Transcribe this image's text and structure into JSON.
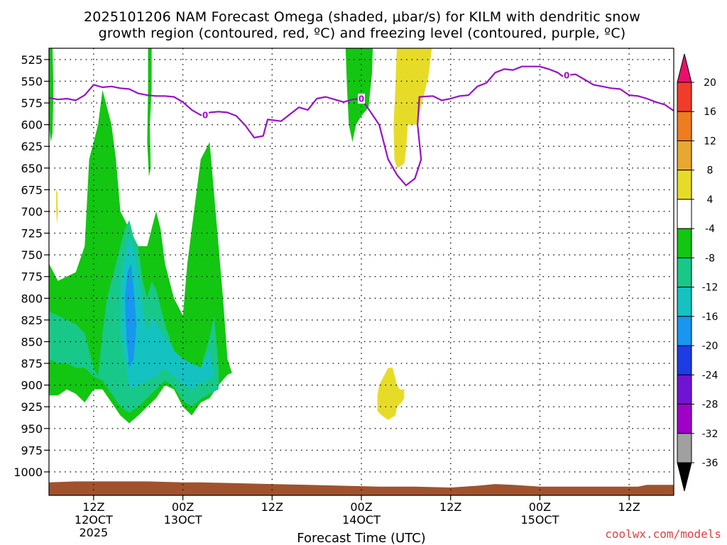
{
  "chart_data": {
    "type": "contour",
    "title_line1": "2025101206 NAM Forecast Omega (shaded, μbar/s) for KILM with dendritic snow",
    "title_line2": "growth region (contoured, red, ºC) and freezing level (contoured, purple, ºC)",
    "xlabel": "Forecast Time (UTC)",
    "credit": "coolwx.com/models",
    "y_ticks": [
      525,
      550,
      575,
      600,
      625,
      650,
      675,
      700,
      725,
      750,
      775,
      800,
      825,
      850,
      875,
      900,
      925,
      950,
      975,
      1000
    ],
    "y_range": [
      512,
      1027
    ],
    "x_range_hours": [
      7,
      77
    ],
    "x_ticks": [
      {
        "hour": 12,
        "lines": [
          "12Z",
          "12OCT",
          "2025"
        ]
      },
      {
        "hour": 22,
        "lines": [
          "00Z",
          "13OCT"
        ]
      },
      {
        "hour": 32,
        "lines": [
          "12Z"
        ]
      },
      {
        "hour": 42,
        "lines": [
          "00Z",
          "14OCT"
        ]
      },
      {
        "hour": 52,
        "lines": [
          "12Z"
        ]
      },
      {
        "hour": 62,
        "lines": [
          "00Z",
          "15OCT"
        ]
      },
      {
        "hour": 72,
        "lines": [
          "12Z"
        ]
      }
    ],
    "colorbar": {
      "labels": [
        "20",
        "16",
        "12",
        "8",
        "4",
        "-4",
        "-8",
        "-12",
        "-16",
        "-20",
        "-24",
        "-28",
        "-32",
        "-36"
      ],
      "colors": [
        "#e8106c",
        "#f03c28",
        "#f07c20",
        "#e6a830",
        "#e6dc28",
        "#ffffff",
        "#12c612",
        "#18c888",
        "#14c2c2",
        "#1896f0",
        "#1c3ce6",
        "#7014d2",
        "#a000c8",
        "#a0a0a0",
        "#000000"
      ]
    },
    "freezing_level": {
      "label": "0",
      "color": "#9a10c8",
      "points": [
        [
          7,
          569
        ],
        [
          8,
          571
        ],
        [
          9,
          570
        ],
        [
          10,
          572
        ],
        [
          11,
          566
        ],
        [
          12,
          554
        ],
        [
          13,
          557
        ],
        [
          14,
          556
        ],
        [
          15,
          558
        ],
        [
          16,
          559
        ],
        [
          17,
          564
        ],
        [
          18,
          566
        ],
        [
          19,
          567
        ],
        [
          20,
          567
        ],
        [
          21,
          568
        ],
        [
          22,
          574
        ],
        [
          23,
          583
        ],
        [
          24,
          589
        ],
        [
          25,
          586
        ],
        [
          26,
          585
        ],
        [
          27,
          586
        ],
        [
          28,
          590
        ],
        [
          29,
          601
        ],
        [
          30,
          615
        ],
        [
          31,
          613
        ],
        [
          31.5,
          594
        ],
        [
          33,
          596
        ],
        [
          34,
          588
        ],
        [
          35,
          580
        ],
        [
          36,
          583
        ],
        [
          37,
          570
        ],
        [
          38,
          568
        ],
        [
          39,
          571
        ],
        [
          40,
          574
        ],
        [
          41,
          571
        ],
        [
          42,
          570
        ],
        [
          43,
          585
        ],
        [
          44,
          600
        ],
        [
          45,
          640
        ],
        [
          46,
          658
        ],
        [
          47,
          670
        ],
        [
          48,
          662
        ],
        [
          48.7,
          640
        ],
        [
          48.3,
          600
        ],
        [
          48.5,
          568
        ],
        [
          50,
          567
        ],
        [
          51,
          572
        ],
        [
          52,
          570
        ],
        [
          53,
          567
        ],
        [
          54,
          566
        ],
        [
          55,
          556
        ],
        [
          56,
          552
        ],
        [
          57,
          540
        ],
        [
          58,
          536
        ],
        [
          59,
          537
        ],
        [
          60,
          533
        ],
        [
          62,
          533
        ],
        [
          63,
          536
        ],
        [
          64,
          540
        ],
        [
          64.5,
          544
        ],
        [
          65,
          543
        ],
        [
          66,
          542
        ],
        [
          67,
          548
        ],
        [
          68,
          554
        ],
        [
          69,
          556
        ],
        [
          70,
          558
        ],
        [
          71,
          559
        ],
        [
          72,
          566
        ],
        [
          73,
          567
        ],
        [
          74,
          570
        ],
        [
          75,
          574
        ],
        [
          76,
          577
        ],
        [
          77,
          584
        ]
      ],
      "label_points": [
        [
          24.5,
          589
        ],
        [
          42,
          570
        ],
        [
          65,
          543
        ]
      ]
    },
    "snow_growth_region": [],
    "omega_fields": [
      {
        "level": -4,
        "color": "#12c612",
        "poly": [
          [
            7,
            760
          ],
          [
            8,
            780
          ],
          [
            9,
            775
          ],
          [
            10,
            770
          ],
          [
            11,
            740
          ],
          [
            11.5,
            640
          ],
          [
            12.5,
            600
          ],
          [
            13,
            560
          ],
          [
            14,
            600
          ],
          [
            14.5,
            640
          ],
          [
            15,
            700
          ],
          [
            16,
            720
          ],
          [
            17,
            740
          ],
          [
            18,
            740
          ],
          [
            18.5,
            720
          ],
          [
            19,
            700
          ],
          [
            19.5,
            720
          ],
          [
            20,
            760
          ],
          [
            21,
            800
          ],
          [
            22,
            820
          ],
          [
            22.5,
            760
          ],
          [
            23,
            720
          ],
          [
            24,
            640
          ],
          [
            25,
            620
          ],
          [
            25.5,
            680
          ],
          [
            26,
            740
          ],
          [
            26.5,
            800
          ],
          [
            27,
            870
          ],
          [
            27.5,
            886
          ],
          [
            27,
            888
          ],
          [
            26,
            900
          ],
          [
            25,
            915
          ],
          [
            24,
            920
          ],
          [
            23,
            935
          ],
          [
            22,
            925
          ],
          [
            21,
            905
          ],
          [
            20,
            900
          ],
          [
            19,
            915
          ],
          [
            18,
            925
          ],
          [
            17,
            935
          ],
          [
            16,
            944
          ],
          [
            15,
            935
          ],
          [
            14,
            920
          ],
          [
            13,
            905
          ],
          [
            12,
            905
          ],
          [
            11,
            920
          ],
          [
            10,
            910
          ],
          [
            9,
            905
          ],
          [
            8,
            912
          ],
          [
            7,
            912
          ]
        ]
      },
      {
        "level": -8,
        "color": "#18c888",
        "poly": [
          [
            7,
            815
          ],
          [
            8,
            820
          ],
          [
            9,
            825
          ],
          [
            10,
            830
          ],
          [
            11,
            840
          ],
          [
            11.5,
            860
          ],
          [
            12,
            880
          ],
          [
            12.5,
            890
          ],
          [
            13,
            840
          ],
          [
            13.5,
            800
          ],
          [
            14.5,
            760
          ],
          [
            15,
            740
          ],
          [
            15.5,
            720
          ],
          [
            16,
            710
          ],
          [
            16.5,
            730
          ],
          [
            17,
            740
          ],
          [
            17.5,
            780
          ],
          [
            18,
            800
          ],
          [
            18.5,
            780
          ],
          [
            19,
            790
          ],
          [
            20,
            830
          ],
          [
            21,
            860
          ],
          [
            22,
            880
          ],
          [
            23,
            890
          ],
          [
            24,
            880
          ],
          [
            25,
            845
          ],
          [
            25.5,
            820
          ],
          [
            26,
            880
          ],
          [
            26,
            905
          ],
          [
            25,
            910
          ],
          [
            24,
            916
          ],
          [
            23,
            925
          ],
          [
            22,
            918
          ],
          [
            21,
            902
          ],
          [
            20,
            895
          ],
          [
            19,
            905
          ],
          [
            18,
            915
          ],
          [
            17,
            925
          ],
          [
            16,
            932
          ],
          [
            15,
            925
          ],
          [
            14,
            910
          ],
          [
            13,
            895
          ],
          [
            12,
            890
          ],
          [
            11,
            880
          ],
          [
            10,
            880
          ],
          [
            9,
            875
          ],
          [
            8,
            875
          ],
          [
            7,
            870
          ]
        ]
      },
      {
        "level": -12,
        "color": "#14c2c2",
        "poly": [
          [
            15,
            780
          ],
          [
            15.5,
            750
          ],
          [
            16,
            728
          ],
          [
            16.5,
            745
          ],
          [
            17,
            770
          ],
          [
            17.5,
            810
          ],
          [
            18,
            840
          ],
          [
            18.5,
            820
          ],
          [
            19,
            830
          ],
          [
            20,
            845
          ],
          [
            21,
            860
          ],
          [
            22,
            870
          ],
          [
            23,
            875
          ],
          [
            24,
            880
          ],
          [
            25,
            860
          ],
          [
            25.5,
            890
          ],
          [
            24,
            898
          ],
          [
            23,
            905
          ],
          [
            22,
            900
          ],
          [
            21,
            890
          ],
          [
            20,
            880
          ],
          [
            19,
            890
          ],
          [
            18,
            895
          ],
          [
            17,
            900
          ],
          [
            16,
            905
          ],
          [
            15.5,
            870
          ],
          [
            15,
            840
          ]
        ]
      },
      {
        "level": -16,
        "color": "#1896f0",
        "poly": [
          [
            15.5,
            800
          ],
          [
            15.8,
            770
          ],
          [
            16.2,
            760
          ],
          [
            16.5,
            790
          ],
          [
            16.8,
            830
          ],
          [
            16.5,
            870
          ],
          [
            16,
            880
          ],
          [
            15.7,
            850
          ]
        ]
      },
      {
        "level": -4,
        "color": "#12c612",
        "poly": [
          [
            18.1,
            504
          ],
          [
            18.5,
            504
          ],
          [
            18.5,
            560
          ],
          [
            18.3,
            600
          ],
          [
            18.4,
            650
          ],
          [
            18.2,
            660
          ],
          [
            18.0,
            620
          ],
          [
            18.1,
            560
          ]
        ]
      },
      {
        "level": -4,
        "color": "#12c612",
        "poly": [
          [
            7,
            512
          ],
          [
            7.4,
            512
          ],
          [
            7.5,
            560
          ],
          [
            7.4,
            610
          ],
          [
            7.2,
            620
          ],
          [
            7,
            600
          ]
        ]
      },
      {
        "level": -4,
        "color": "#12c612",
        "poly": [
          [
            40.2,
            504
          ],
          [
            43.3,
            504
          ],
          [
            43.2,
            540
          ],
          [
            42.8,
            580
          ],
          [
            42,
            590
          ],
          [
            41.4,
            600
          ],
          [
            41,
            620
          ],
          [
            40.6,
            600
          ],
          [
            40.4,
            560
          ]
        ]
      },
      {
        "level": 4,
        "color": "#e6dc28",
        "poly": [
          [
            46,
            504
          ],
          [
            50,
            504
          ],
          [
            49.8,
            520
          ],
          [
            49.5,
            545
          ],
          [
            48.9,
            570
          ],
          [
            48.2,
            600
          ],
          [
            47.2,
            600
          ],
          [
            47,
            630
          ],
          [
            46.8,
            645
          ],
          [
            46,
            650
          ],
          [
            45.7,
            640
          ],
          [
            45.6,
            600
          ],
          [
            45.8,
            560
          ],
          [
            45.9,
            530
          ]
        ]
      },
      {
        "level": 4,
        "color": "#e6dc28",
        "poly": [
          [
            43.8,
            912
          ],
          [
            44,
            900
          ],
          [
            44.5,
            890
          ],
          [
            45,
            880
          ],
          [
            45.5,
            880
          ],
          [
            46,
            900
          ],
          [
            46.3,
            905
          ],
          [
            46.8,
            905
          ],
          [
            46.8,
            915
          ],
          [
            46.5,
            920
          ],
          [
            46,
            925
          ],
          [
            45.8,
            935
          ],
          [
            45,
            940
          ],
          [
            44.3,
            935
          ],
          [
            43.8,
            930
          ]
        ]
      },
      {
        "level": 4,
        "color": "#e6dc28",
        "poly": [
          [
            7.8,
            675
          ],
          [
            7.95,
            678
          ],
          [
            8,
            700
          ],
          [
            7.9,
            715
          ],
          [
            7.8,
            700
          ]
        ]
      }
    ],
    "terrain": {
      "color": "#a0522d",
      "bottom": 1027,
      "top_points": [
        [
          7,
          1012
        ],
        [
          10,
          1011
        ],
        [
          14,
          1011
        ],
        [
          18,
          1011
        ],
        [
          22,
          1012
        ],
        [
          24,
          1012
        ],
        [
          28,
          1013
        ],
        [
          32,
          1014
        ],
        [
          36,
          1015
        ],
        [
          40,
          1016
        ],
        [
          44,
          1017
        ],
        [
          48,
          1017
        ],
        [
          52,
          1018
        ],
        [
          55,
          1016
        ],
        [
          57,
          1014
        ],
        [
          59,
          1015
        ],
        [
          62,
          1017
        ],
        [
          66,
          1017
        ],
        [
          70,
          1017
        ],
        [
          73,
          1017
        ],
        [
          74,
          1015
        ],
        [
          77,
          1015
        ]
      ]
    }
  }
}
